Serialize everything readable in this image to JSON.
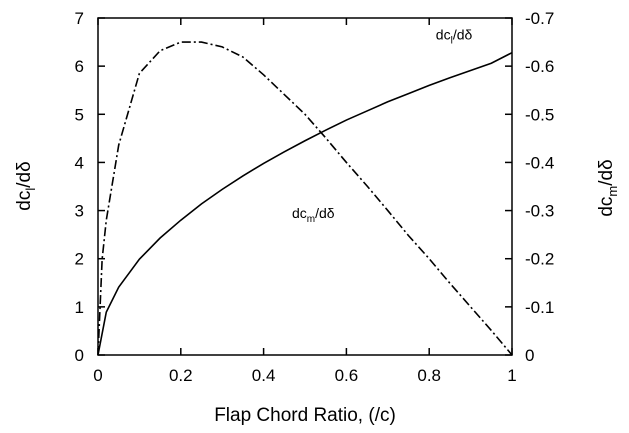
{
  "chart_data": {
    "type": "line",
    "xlabel": "Flap Chord Ratio, (/c)",
    "ylabel_left": {
      "base": "dc",
      "sub": "l",
      "rest": "/dδ"
    },
    "ylabel_right": {
      "base": "dc",
      "sub": "m",
      "rest": "/dδ"
    },
    "xlim": [
      0,
      1
    ],
    "ylim_left": [
      0,
      7
    ],
    "ylim_right": [
      0,
      -0.7
    ],
    "x_ticks": [
      0,
      0.2,
      0.4,
      0.6,
      0.8,
      1
    ],
    "x_tick_labels": [
      "0",
      "0.2",
      "0.4",
      "0.6",
      "0.8",
      "1"
    ],
    "y_left_ticks": [
      0,
      1,
      2,
      3,
      4,
      5,
      6,
      7
    ],
    "y_left_tick_labels": [
      "0",
      "1",
      "2",
      "3",
      "4",
      "5",
      "6",
      "7"
    ],
    "y_right_ticks": [
      0,
      -0.1,
      -0.2,
      -0.3,
      -0.4,
      -0.5,
      -0.6,
      -0.7
    ],
    "y_right_tick_labels": [
      "0",
      "-0.1",
      "-0.2",
      "-0.3",
      "-0.4",
      "-0.5",
      "-0.6",
      "-0.7"
    ],
    "grid": false,
    "series": [
      {
        "axis": "left",
        "style": "solid",
        "x": [
          0,
          0.02,
          0.05,
          0.1,
          0.15,
          0.2,
          0.25,
          0.3,
          0.35,
          0.4,
          0.45,
          0.5,
          0.55,
          0.6,
          0.65,
          0.7,
          0.75,
          0.8,
          0.85,
          0.9,
          0.95,
          1.0
        ],
        "y": [
          0,
          0.89,
          1.41,
          1.99,
          2.43,
          2.8,
          3.14,
          3.44,
          3.72,
          3.98,
          4.22,
          4.45,
          4.67,
          4.88,
          5.07,
          5.26,
          5.43,
          5.6,
          5.76,
          5.91,
          6.06,
          6.28
        ]
      },
      {
        "axis": "right",
        "style": "dashdot",
        "x": [
          0,
          0.01,
          0.02,
          0.05,
          0.1,
          0.15,
          0.2,
          0.25,
          0.3,
          0.35,
          0.4,
          0.45,
          0.5,
          0.55,
          0.6,
          0.65,
          0.7,
          0.75,
          0.8,
          0.85,
          0.9,
          0.95,
          1.0
        ],
        "y": [
          0,
          -0.199,
          -0.28,
          -0.436,
          -0.585,
          -0.632,
          -0.65,
          -0.65,
          -0.64,
          -0.619,
          -0.582,
          -0.541,
          -0.5,
          -0.451,
          -0.4,
          -0.351,
          -0.3,
          -0.248,
          -0.2,
          -0.149,
          -0.1,
          -0.051,
          0
        ]
      }
    ],
    "annotations": {
      "cl": {
        "base": "dc",
        "sub": "l",
        "rest": "/dδ",
        "x": 0.86,
        "y_left": 6.55
      },
      "cm": {
        "base": "dc",
        "sub": "m",
        "rest": "/dδ",
        "x": 0.52,
        "y_left": 2.85
      }
    }
  }
}
